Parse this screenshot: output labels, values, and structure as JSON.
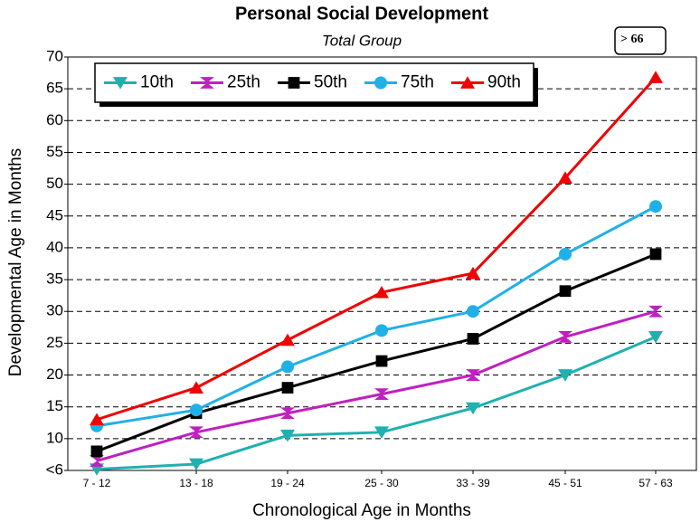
{
  "chart_data": {
    "type": "line",
    "title": "Personal Social Development",
    "subtitle": "Total Group",
    "annotation": "> 66",
    "x_label": "Chronological Age in Months",
    "y_label": "Developmental Age in Months",
    "categories": [
      "7 - 12",
      "13 - 18",
      "19 - 24",
      "25 - 30",
      "33 - 39",
      "45 - 51",
      "57 - 63"
    ],
    "series": [
      {
        "name": "10th",
        "color": "#20b0b0",
        "marker": "triangle-down",
        "values": [
          5.2,
          6,
          10.5,
          11,
          14.8,
          20,
          26
        ]
      },
      {
        "name": "25th",
        "color": "#c020c0",
        "marker": "bowtie",
        "values": [
          6.5,
          11,
          14,
          17,
          20,
          26,
          30
        ]
      },
      {
        "name": "50th",
        "color": "#000000",
        "marker": "square",
        "values": [
          8,
          14,
          18,
          22.2,
          25.7,
          33.2,
          39
        ]
      },
      {
        "name": "75th",
        "color": "#20b0e8",
        "marker": "circle",
        "values": [
          12,
          14.5,
          21.3,
          27,
          30,
          39,
          46.5
        ]
      },
      {
        "name": "90th",
        "color": "#f00000",
        "marker": "triangle-up",
        "values": [
          13,
          18,
          25.5,
          33,
          36,
          51,
          66.8
        ]
      }
    ],
    "ylim": [
      5,
      70
    ],
    "yticks": [
      {
        "value": 5,
        "label": "<6"
      },
      10,
      15,
      20,
      25,
      30,
      35,
      40,
      45,
      50,
      55,
      60,
      65,
      70
    ],
    "grid": true,
    "legend": "top-left"
  }
}
